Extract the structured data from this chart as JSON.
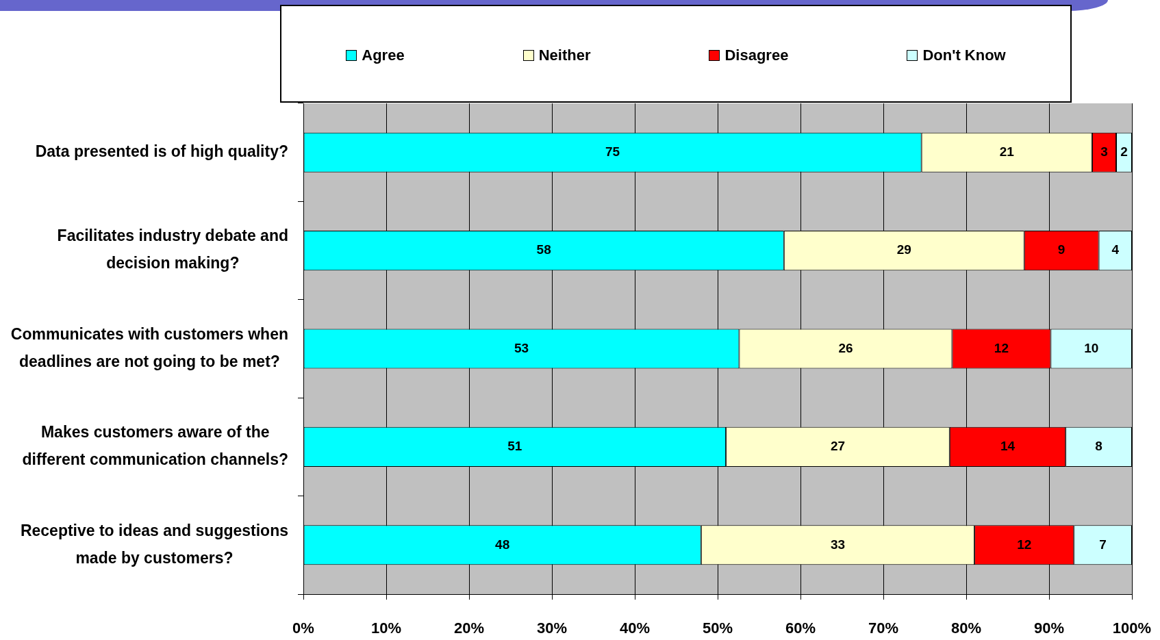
{
  "chart_data": {
    "type": "bar",
    "orientation": "horizontal",
    "stacked": true,
    "categories": [
      "Data presented is of high quality?",
      "Facilitates industry debate and decision making?",
      "Communicates with customers when deadlines are not going to be met?",
      "Makes customers aware of the different communication channels?",
      "Receptive to ideas and suggestions made by customers?"
    ],
    "series": [
      {
        "name": "Agree",
        "color": "#00ffff",
        "values": [
          74.6,
          58,
          52.6,
          51,
          48
        ],
        "value_labels": [
          "75",
          "58",
          "53",
          "51",
          "48"
        ]
      },
      {
        "name": "Neither",
        "color": "#ffffcc",
        "values": [
          20.6,
          29,
          25.7,
          27,
          33
        ],
        "value_labels": [
          "21",
          "29",
          "26",
          "27",
          "33"
        ]
      },
      {
        "name": "Disagree",
        "color": "#ff0000",
        "values": [
          2.9,
          9,
          11.9,
          14,
          12
        ],
        "value_labels": [
          "3",
          "9",
          "12",
          "14",
          "12"
        ]
      },
      {
        "name": "Don't Know",
        "color": "#ccffff",
        "values": [
          1.9,
          4,
          9.8,
          8,
          7
        ],
        "value_labels": [
          "2",
          "4",
          "10",
          "8",
          "7"
        ]
      }
    ],
    "xlim": [
      0,
      100
    ],
    "xticks": [
      {
        "value": 0,
        "label": "0%"
      },
      {
        "value": 10,
        "label": "10%"
      },
      {
        "value": 20,
        "label": "20%"
      },
      {
        "value": 30,
        "label": "30%"
      },
      {
        "value": 40,
        "label": "40%"
      },
      {
        "value": 50,
        "label": "50%"
      },
      {
        "value": 60,
        "label": "60%"
      },
      {
        "value": 70,
        "label": "70%"
      },
      {
        "value": 80,
        "label": "80%"
      },
      {
        "value": 90,
        "label": "90%"
      },
      {
        "value": 100,
        "label": "100%"
      }
    ],
    "grid": "x",
    "legend": "top"
  }
}
